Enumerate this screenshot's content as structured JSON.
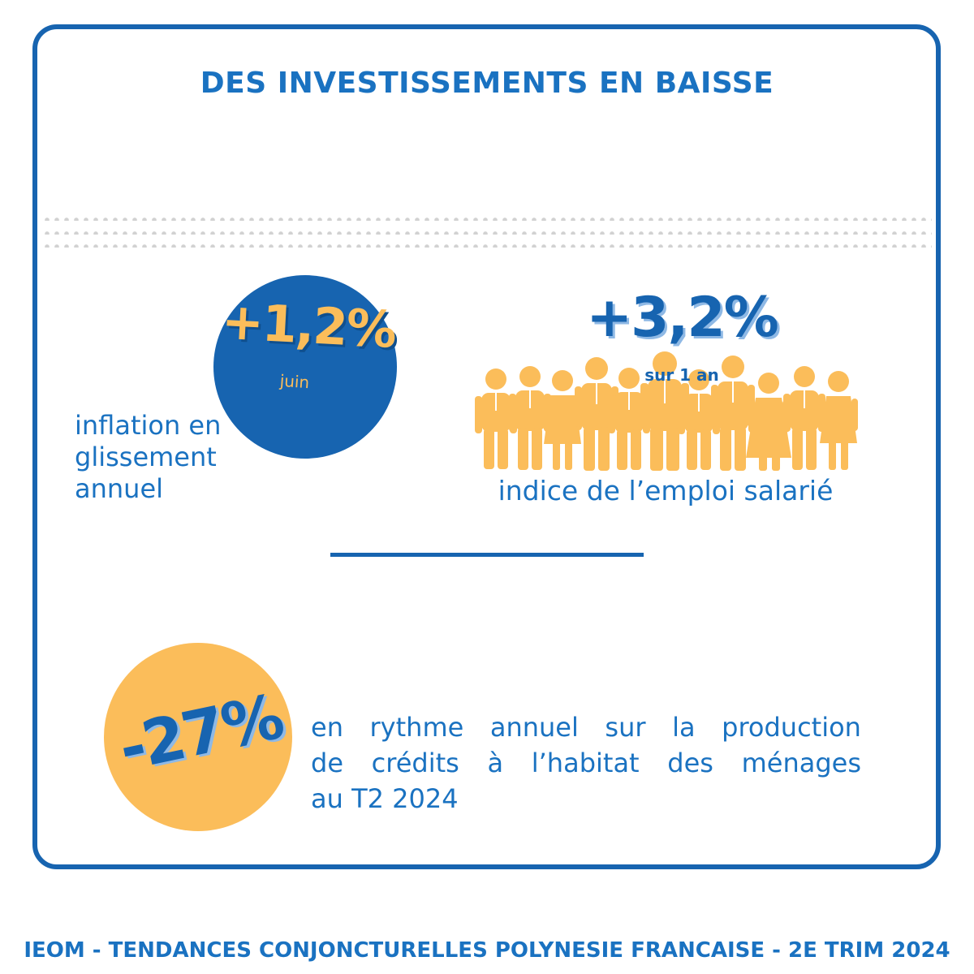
{
  "title": "DES INVESTISSEMENTS EN BAISSE",
  "inflation": {
    "value": "+1,2%",
    "period": "juin",
    "label_lines": [
      "inflation en",
      "glissement",
      "annuel"
    ]
  },
  "emploi": {
    "value": "+3,2%",
    "period": "sur 1 an",
    "label": "indice de l’emploi salarié",
    "icon": "people-group-icon"
  },
  "credits": {
    "value": "-27%",
    "label_lines": [
      [
        "en",
        "rythme",
        "annuel",
        "sur",
        "la",
        "production"
      ],
      [
        "de",
        "crédits",
        "à",
        "l’habitat",
        "des",
        "ménages"
      ]
    ],
    "label_last": "au T2 2024"
  },
  "footer": "IEOM - TENDANCES CONJONCTURELLES POLYNESIE FRANCAISE - 2E TRIM 2024",
  "colors": {
    "blue": "#1764b0",
    "text_blue": "#1a72c1",
    "yellow": "#fbbd5a",
    "dots": "#d2d2d2"
  }
}
